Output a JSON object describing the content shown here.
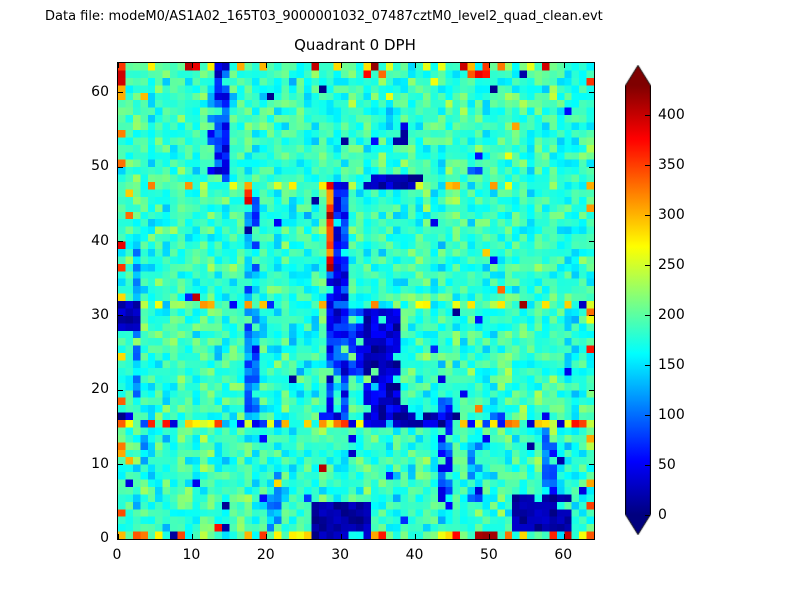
{
  "header": {
    "text": "Data file: modeM0/AS1A02_165T03_9000001032_07487cztM0_level2_quad_clean.evt"
  },
  "chart_data": {
    "type": "heatmap",
    "title": "Quadrant 0 DPH",
    "xlabel": "",
    "ylabel": "",
    "x_range": [
      0,
      64
    ],
    "y_range": [
      0,
      64
    ],
    "x_ticks": [
      0,
      10,
      20,
      30,
      40,
      50,
      60
    ],
    "y_ticks": [
      0,
      10,
      20,
      30,
      40,
      50,
      60
    ],
    "grid_size": [
      64,
      64
    ],
    "grid": false,
    "colormap": "jet",
    "colorbar": {
      "position": "right",
      "extend": "both",
      "vmin": 0,
      "vmax": 430,
      "ticks": [
        0,
        50,
        100,
        150,
        200,
        250,
        300,
        350,
        400
      ]
    },
    "description": "64x64 detector plane histogram (DPH) of CZTI quadrant 0. Background counts ~150-220 (cyan/green speckle). Cold (blue/navy, ~0-120) vertical stripes near x=13-14 (top), x=17-18 and x=28-30 (middle), x=43-44, x=47-48, x=57-58, x=20-21 (bottom). Dead/navy blobs at x=33-37 y=16-30, x=26-33 y=0-4, x=53-60 y=1-5, x=0-2 y=28-31. Hot (orange/red, ~240-430) pixels along detector edges (x=0, y=0, y=63, x=63), along module seam rows y=15, y=31, y=47, a hot streak at x=28 y=36-47, and hot clusters on the top row near x=33-35 and x=46-49.",
    "seed": 42,
    "base": {
      "mean": 183,
      "sigma": 20,
      "column_variation": 10
    },
    "features": [
      {
        "name": "seam-row-15-hot",
        "x0": 0,
        "x1": 63,
        "y0": 15,
        "y1": 15,
        "p": 0.5,
        "lo": 240,
        "hi": 380
      },
      {
        "name": "seam-row-15-cold",
        "x0": 0,
        "x1": 63,
        "y0": 15,
        "y1": 16,
        "p": 0.13,
        "lo": 0,
        "hi": 90
      },
      {
        "name": "seam-row-31-hot",
        "x0": 0,
        "x1": 63,
        "y0": 31,
        "y1": 31,
        "p": 0.3,
        "lo": 230,
        "hi": 320
      },
      {
        "name": "seam-row-31-cold",
        "x0": 0,
        "x1": 63,
        "y0": 31,
        "y1": 31,
        "p": 0.1,
        "lo": 0,
        "hi": 80
      },
      {
        "name": "seam-row-47-hot",
        "x0": 0,
        "x1": 63,
        "y0": 47,
        "y1": 47,
        "p": 0.3,
        "lo": 230,
        "hi": 330
      },
      {
        "name": "edge-left-hot",
        "x0": 0,
        "x1": 0,
        "y0": 0,
        "y1": 63,
        "p": 0.4,
        "lo": 240,
        "hi": 430
      },
      {
        "name": "edge-bottom-hot",
        "x0": 0,
        "x1": 63,
        "y0": 0,
        "y1": 0,
        "p": 0.5,
        "lo": 240,
        "hi": 420
      },
      {
        "name": "edge-top-hot",
        "x0": 0,
        "x1": 63,
        "y0": 63,
        "y1": 63,
        "p": 0.3,
        "lo": 240,
        "hi": 430
      },
      {
        "name": "edge-right-hot",
        "x0": 63,
        "x1": 63,
        "y0": 0,
        "y1": 63,
        "p": 0.25,
        "lo": 230,
        "hi": 400
      },
      {
        "name": "cold-stripe-x13",
        "x0": 13,
        "x1": 14,
        "y0": 48,
        "y1": 63,
        "p": 0.92,
        "lo": 20,
        "hi": 110
      },
      {
        "name": "cold-stripe-x12",
        "x0": 12,
        "x1": 12,
        "y0": 53,
        "y1": 60,
        "p": 0.6,
        "lo": 90,
        "hi": 150
      },
      {
        "name": "cold-stripe-x17",
        "x0": 17,
        "x1": 18,
        "y0": 16,
        "y1": 46,
        "p": 0.75,
        "lo": 70,
        "hi": 150
      },
      {
        "name": "cold-stripe-x28",
        "x0": 28,
        "x1": 30,
        "y0": 16,
        "y1": 47,
        "p": 0.85,
        "lo": 20,
        "hi": 110
      },
      {
        "name": "cold-stripe-x2-mid",
        "x0": 2,
        "x1": 2,
        "y0": 18,
        "y1": 44,
        "p": 0.55,
        "lo": 90,
        "hi": 160
      },
      {
        "name": "cold-stripe-x2-low",
        "x0": 2,
        "x1": 3,
        "y0": 4,
        "y1": 13,
        "p": 0.5,
        "lo": 100,
        "hi": 160
      },
      {
        "name": "cold-stripe-x43",
        "x0": 43,
        "x1": 44,
        "y0": 4,
        "y1": 18,
        "p": 0.8,
        "lo": 40,
        "hi": 120
      },
      {
        "name": "cold-stripe-x47",
        "x0": 47,
        "x1": 48,
        "y0": 5,
        "y1": 12,
        "p": 0.6,
        "lo": 80,
        "hi": 150
      },
      {
        "name": "cold-stripe-x57",
        "x0": 57,
        "x1": 58,
        "y0": 5,
        "y1": 14,
        "p": 0.7,
        "lo": 50,
        "hi": 130
      },
      {
        "name": "cold-stripe-x20",
        "x0": 20,
        "x1": 21,
        "y0": 1,
        "y1": 9,
        "p": 0.55,
        "lo": 90,
        "hi": 150
      },
      {
        "name": "cold-spot-x47-y50",
        "x0": 47,
        "x1": 48,
        "y0": 49,
        "y1": 52,
        "p": 0.6,
        "lo": 40,
        "hi": 120
      },
      {
        "name": "cold-spot-x37-y54",
        "x0": 37,
        "x1": 38,
        "y0": 53,
        "y1": 55,
        "p": 0.7,
        "lo": 0,
        "hi": 60
      },
      {
        "name": "cold-spot-x49-y14",
        "x0": 49,
        "x1": 50,
        "y0": 13,
        "y1": 16,
        "p": 0.5,
        "lo": 40,
        "hi": 110
      },
      {
        "name": "cold-bridge-x31",
        "x0": 31,
        "x1": 33,
        "y0": 22,
        "y1": 30,
        "p": 0.7,
        "lo": 30,
        "hi": 110
      },
      {
        "name": "hot-stripe-x28",
        "x0": 28,
        "x1": 28,
        "y0": 36,
        "y1": 47,
        "p": 0.9,
        "lo": 280,
        "hi": 420
      },
      {
        "name": "hot-spot-x17-y46",
        "x0": 17,
        "x1": 17,
        "y0": 45,
        "y1": 47,
        "p": 0.8,
        "lo": 280,
        "hi": 400
      },
      {
        "name": "hot-spot-top-x33",
        "x0": 33,
        "x1": 35,
        "y0": 62,
        "y1": 63,
        "p": 0.8,
        "lo": 280,
        "hi": 430
      },
      {
        "name": "hot-spot-top-x46",
        "x0": 46,
        "x1": 49,
        "y0": 62,
        "y1": 63,
        "p": 0.6,
        "lo": 260,
        "hi": 400
      },
      {
        "name": "dead-blob-mid-x33",
        "x0": 33,
        "x1": 37,
        "y0": 16,
        "y1": 30,
        "p": 0.93,
        "lo": 0,
        "hi": 60
      },
      {
        "name": "dead-blob-seam-x33",
        "x0": 33,
        "x1": 44,
        "y0": 15,
        "y1": 16,
        "p": 0.85,
        "lo": 0,
        "hi": 60
      },
      {
        "name": "dead-blob-top-x33",
        "x0": 33,
        "x1": 40,
        "y0": 47,
        "y1": 48,
        "p": 0.85,
        "lo": 0,
        "hi": 55
      },
      {
        "name": "dead-blob-left-x0",
        "x0": 0,
        "x1": 2,
        "y0": 28,
        "y1": 31,
        "p": 0.95,
        "lo": 0,
        "hi": 40
      },
      {
        "name": "dead-blob-bottom-x26",
        "x0": 26,
        "x1": 33,
        "y0": 0,
        "y1": 4,
        "p": 0.96,
        "lo": 0,
        "hi": 35
      },
      {
        "name": "dead-blob-bottom-x53",
        "x0": 53,
        "x1": 60,
        "y0": 1,
        "y1": 5,
        "p": 0.95,
        "lo": 0,
        "hi": 35
      },
      {
        "name": "scatter-cold",
        "x0": 0,
        "x1": 63,
        "y0": 0,
        "y1": 63,
        "p": 0.012,
        "lo": 0,
        "hi": 80
      },
      {
        "name": "scatter-hot",
        "x0": 0,
        "x1": 63,
        "y0": 0,
        "y1": 63,
        "p": 0.007,
        "lo": 250,
        "hi": 420
      }
    ]
  }
}
